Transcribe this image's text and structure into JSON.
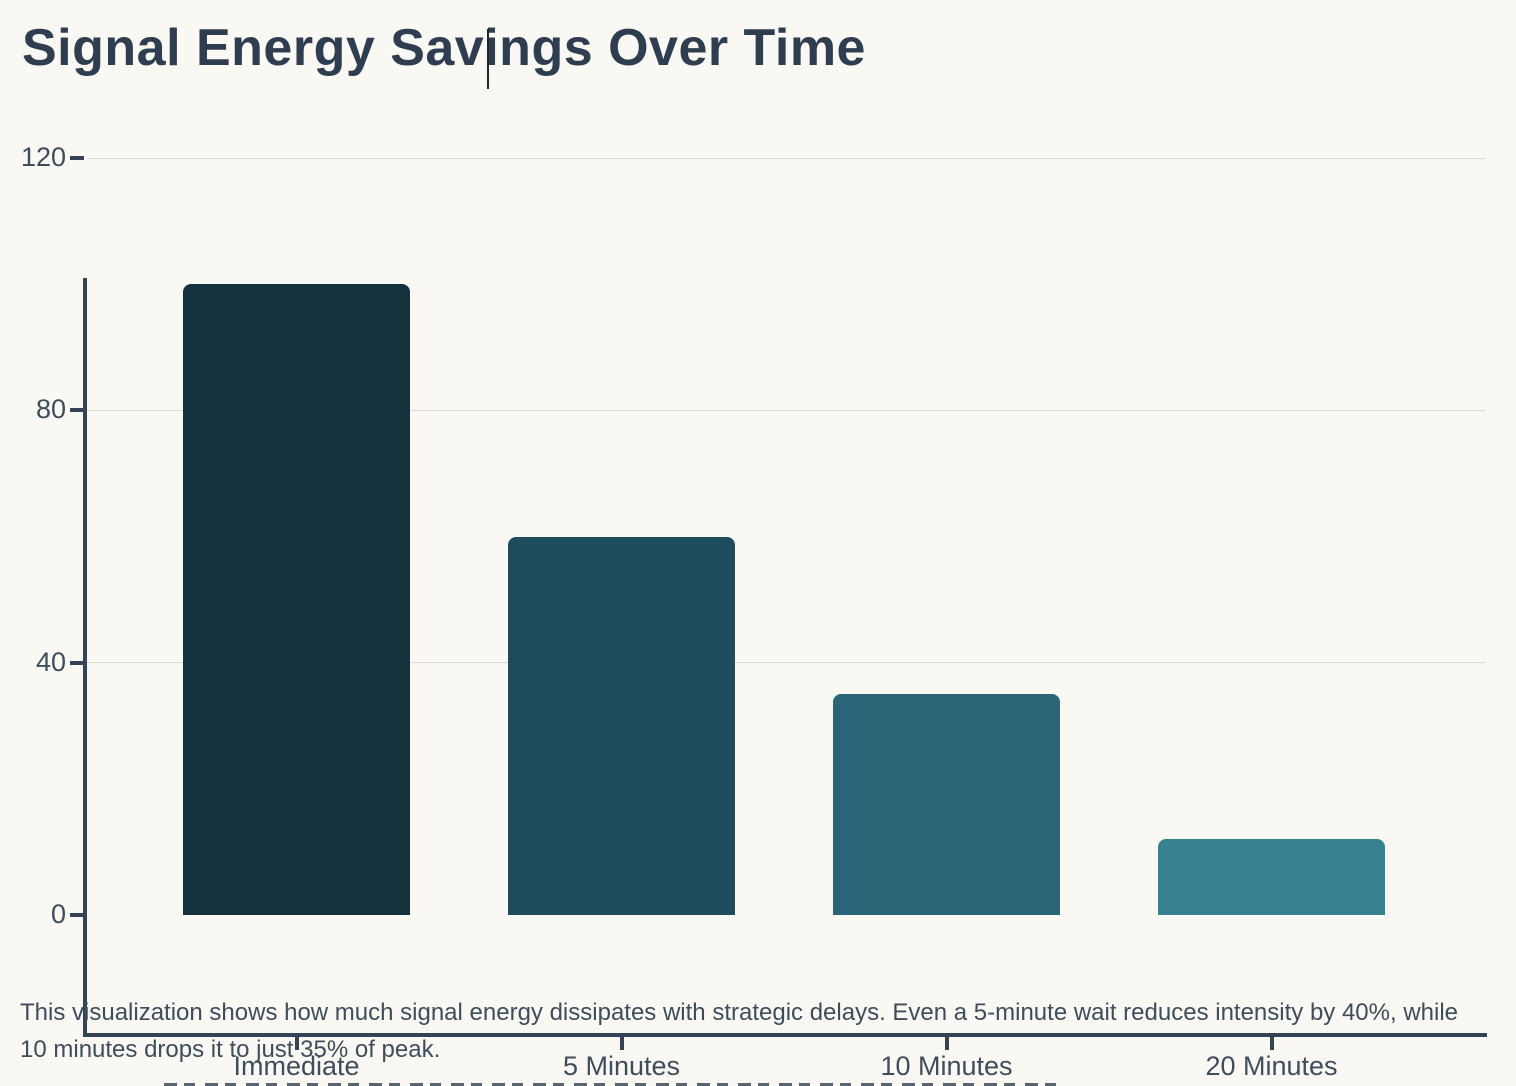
{
  "page": {
    "background": "#faf8f2",
    "title": "Signal Energy Savings Over Time",
    "caption": "This visualization shows how much signal energy dissipates with strategic delays. Even a 5-minute wait reduces intensity by 40%, while 10 minutes drops it to just 35% of peak."
  },
  "colors": {
    "title_text": "#2e3e50",
    "axis": "#344456",
    "tick_label": "#3e4d5e",
    "gridline": "#d9d9d9",
    "caption_text": "#3e4d5c",
    "bars": [
      "#14323d",
      "#1d4d5d",
      "#2a6678",
      "#35818f"
    ]
  },
  "chart_data": {
    "type": "bar",
    "title": "Signal Energy Savings Over Time",
    "categories": [
      "Immediate",
      "5 Minutes",
      "10 Minutes",
      "20 Minutes"
    ],
    "values": [
      100,
      60,
      35,
      12
    ],
    "xlabel": "",
    "ylabel": "",
    "ylim": [
      0,
      120
    ],
    "yticks": [
      0,
      40,
      80,
      120
    ],
    "grid": true,
    "legend_position": "none",
    "bar_colors": [
      "#14323d",
      "#1d4d5d",
      "#2a6678",
      "#35818f"
    ]
  }
}
